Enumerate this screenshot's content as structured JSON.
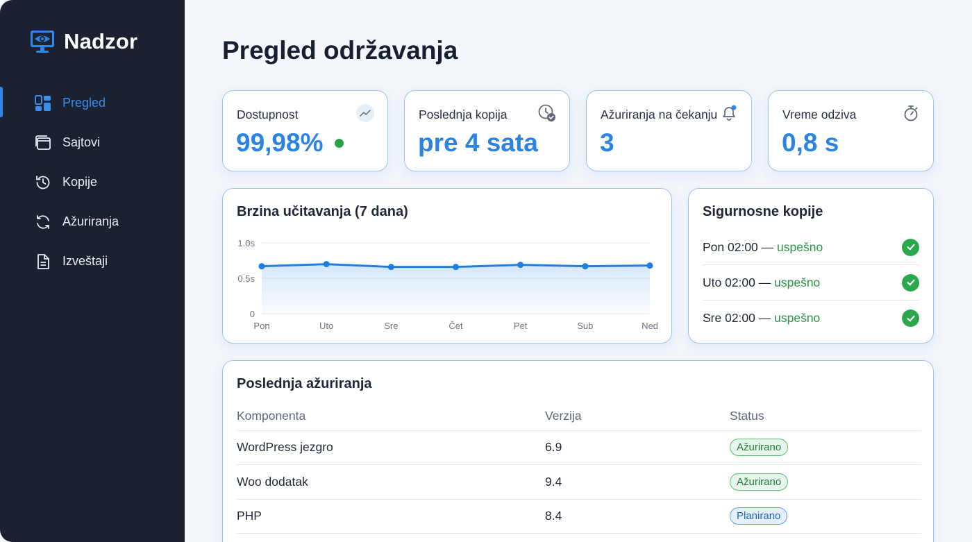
{
  "brand": {
    "name": "Nadzor",
    "icon": "monitor-eye-icon"
  },
  "sidebar": {
    "items": [
      {
        "label": "Pregled",
        "icon": "dashboard-icon",
        "active": true
      },
      {
        "label": "Sajtovi",
        "icon": "windows-icon",
        "active": false
      },
      {
        "label": "Kopije",
        "icon": "history-icon",
        "active": false
      },
      {
        "label": "Ažuriranja",
        "icon": "refresh-icon",
        "active": false
      },
      {
        "label": "Izveštaji",
        "icon": "document-icon",
        "active": false
      }
    ]
  },
  "page": {
    "title": "Pregled održavanja"
  },
  "kpis": [
    {
      "label": "Dostupnost",
      "value": "99,98%",
      "icon": "trend-icon",
      "status_color": "#27a346"
    },
    {
      "label": "Poslednja kopija",
      "value": "pre 4 sata",
      "icon": "clock-check-icon"
    },
    {
      "label": "Ažuriranja na čekanju",
      "value": "3",
      "icon": "bell-icon"
    },
    {
      "label": "Vreme odziva",
      "value": "0,8 s",
      "icon": "stopwatch-icon"
    }
  ],
  "load_chart": {
    "title": "Brzina učitavanja (7 dana)"
  },
  "chart_data": {
    "type": "area",
    "title": "Brzina učitavanja (7 dana)",
    "categories": [
      "Pon",
      "Uto",
      "Sre",
      "Čet",
      "Pet",
      "Sub",
      "Ned"
    ],
    "series": [
      {
        "values": [
          0.67,
          0.7,
          0.66,
          0.66,
          0.69,
          0.67,
          0.68
        ]
      }
    ],
    "ylim": [
      0,
      1.0
    ],
    "yticks": [
      "0",
      "0.5s",
      "1.0s"
    ],
    "grid": true,
    "color": "#1f7fe0"
  },
  "backups": {
    "title": "Sigurnosne kopije",
    "items": [
      {
        "time": "Pon 02:00 —",
        "status": "uspešno"
      },
      {
        "time": "Uto 02:00 —",
        "status": "uspešno"
      },
      {
        "time": "Sre 02:00 —",
        "status": "uspešno"
      }
    ]
  },
  "updates": {
    "title": "Poslednja ažuriranja",
    "columns": [
      "Komponenta",
      "Verzija",
      "Status"
    ],
    "rows": [
      {
        "component": "WordPress jezgro",
        "version": "6.9",
        "status": "Ažurirano",
        "kind": "green"
      },
      {
        "component": "Woo dodatak",
        "version": "9.4",
        "status": "Ažurirano",
        "kind": "green"
      },
      {
        "component": "PHP",
        "version": "8.4",
        "status": "Planirano",
        "kind": "blue"
      }
    ]
  }
}
